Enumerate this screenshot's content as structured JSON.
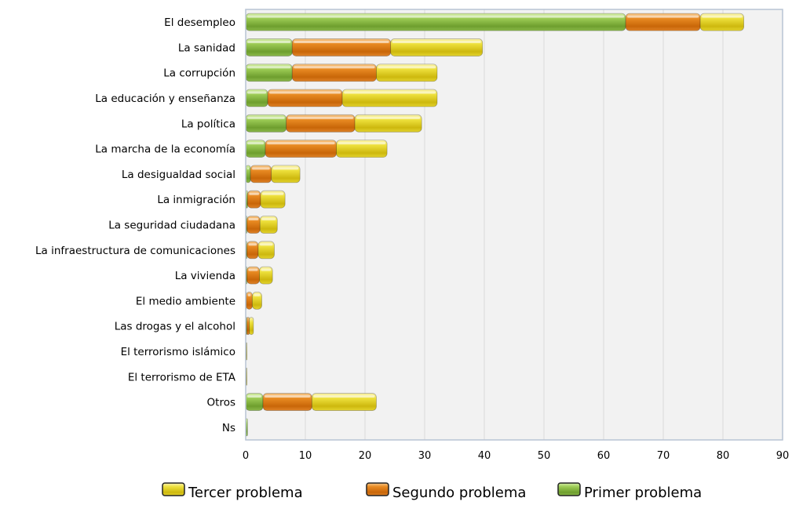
{
  "chart_data": {
    "type": "bar",
    "orientation": "horizontal",
    "stacked": true,
    "title": "",
    "xlabel": "",
    "ylabel": "",
    "xlim": [
      0,
      90
    ],
    "x_ticks": [
      "0",
      "10",
      "20",
      "30",
      "40",
      "50",
      "60",
      "70",
      "80",
      "90"
    ],
    "grid": true,
    "legend_position": "bottom",
    "categories": [
      "El desempleo",
      "La sanidad",
      "La corrupción",
      "La educación y enseñanza",
      "La política",
      "La marcha de la economía",
      "La desigualdad social",
      "La inmigración",
      "La seguridad ciudadana",
      "La infraestructura de comunicaciones",
      "La vivienda",
      "El medio ambiente",
      "Las drogas y el alcohol",
      "El terrorismo islámico",
      "El terrorismo de ETA",
      "Otros",
      "Ns"
    ],
    "series": [
      {
        "name": "Primer problema",
        "color": "#7FB23A",
        "values": [
          63.7,
          7.8,
          7.8,
          3.7,
          6.8,
          3.3,
          0.8,
          0.3,
          0.2,
          0.2,
          0.2,
          0.1,
          0.2,
          0.1,
          0.1,
          2.9,
          0.3
        ]
      },
      {
        "name": "Segundo problema",
        "color": "#E07A10",
        "values": [
          12.5,
          16.5,
          14.1,
          12.5,
          11.5,
          11.9,
          3.5,
          2.2,
          2.2,
          1.9,
          2.1,
          1.0,
          0.4,
          0.0,
          0.0,
          8.2,
          0.0
        ]
      },
      {
        "name": "Tercer problema",
        "color": "#E4D21A",
        "values": [
          7.3,
          15.4,
          10.2,
          15.9,
          11.2,
          8.5,
          4.8,
          4.1,
          2.9,
          2.7,
          2.2,
          1.6,
          0.7,
          0.1,
          0.1,
          10.8,
          0.0
        ]
      }
    ],
    "legend": [
      {
        "label": "Tercer problema",
        "color": "#E4D21A"
      },
      {
        "label": "Segundo problema",
        "color": "#E07A10"
      },
      {
        "label": "Primer problema",
        "color": "#7FB23A"
      }
    ],
    "colors": {
      "plot_background": "#F2F2F2",
      "grid": "#D9D9D9",
      "frame": "#B8C4D4"
    }
  }
}
